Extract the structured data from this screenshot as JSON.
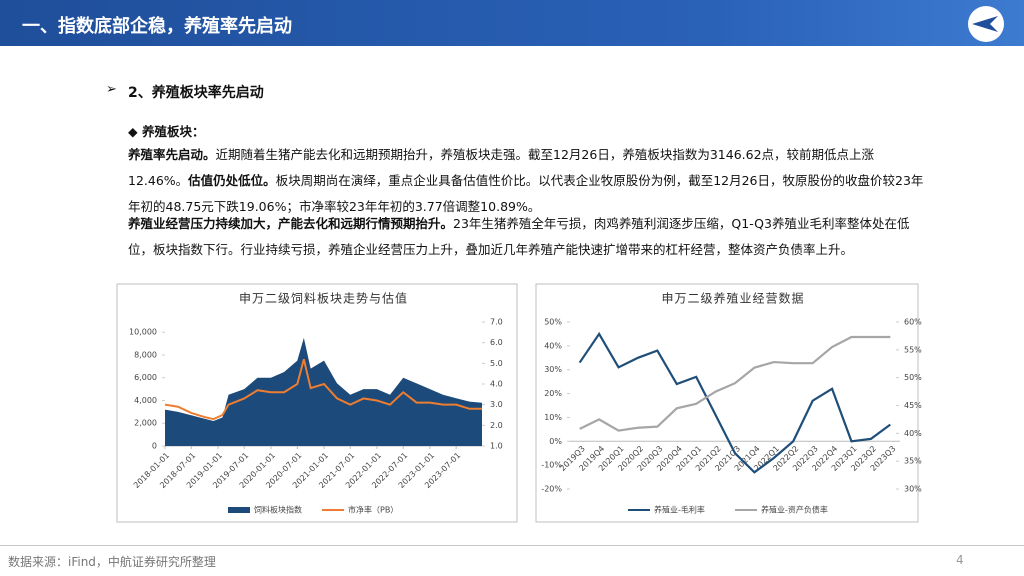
{
  "header": {
    "title": "一、指数底部企稳，养殖率先启动"
  },
  "section": {
    "title": "2、养殖板块率先启动",
    "subtitle": "养殖板块："
  },
  "paragraphs": [
    {
      "runs": [
        {
          "text": "养殖率先启动。",
          "bold": true
        },
        {
          "text": "近期随着生猪产能去化和远期预期抬升，养殖板块走强。截至12月26日，养殖板块指数为3146.62点，较前期低点上涨12.46%。",
          "bold": false
        },
        {
          "text": "估值仍处低位。",
          "bold": true
        },
        {
          "text": "板块周期尚在演绎，重点企业具备估值性价比。以代表企业牧原股份为例，截至12月26日，牧原股份的收盘价较23年年初的48.75元下跌19.06%；市净率较23年年初的3.77倍调整10.89%。",
          "bold": false
        }
      ]
    },
    {
      "runs": [
        {
          "text": "养殖业经营压力持续加大，产能去化和远期行情预期抬升。",
          "bold": true
        },
        {
          "text": "23年生猪养殖全年亏损，肉鸡养殖利润逐步压缩，Q1-Q3养殖业毛利率整体处在低位，板块指数下行。行业持续亏损，养殖企业经营压力上升，叠加近几年养殖产能快速扩增带来的杠杆经营，整体资产负债率上升。",
          "bold": false
        }
      ]
    }
  ],
  "chart_data": [
    {
      "type": "area-line",
      "title": "申万二级饲料板块走势与估值",
      "x": [
        "2018-01-01",
        "2018-04-01",
        "2018-07-01",
        "2018-10-01",
        "2018-12-01",
        "2019-02-01",
        "2019-03-15",
        "2019-07-01",
        "2019-10-01",
        "2020-01-01",
        "2020-04-01",
        "2020-07-01",
        "2020-08-15",
        "2020-10-01",
        "2021-01-01",
        "2021-04-01",
        "2021-07-01",
        "2021-10-01",
        "2022-01-01",
        "2022-04-01",
        "2022-07-01",
        "2022-10-01",
        "2023-01-01",
        "2023-04-01",
        "2023-07-01",
        "2023-10-01",
        "2023-12-26"
      ],
      "series": [
        {
          "name": "饲料板块指数",
          "color": "#1c4a7a",
          "values": [
            3200,
            3000,
            2700,
            2400,
            2200,
            2500,
            4500,
            5000,
            6000,
            6000,
            6500,
            7500,
            9500,
            6800,
            7500,
            5500,
            4500,
            5000,
            5000,
            4500,
            6000,
            5500,
            5000,
            4500,
            4200,
            3900,
            3800
          ]
        },
        {
          "name": "市净率（PB）",
          "color": "#ed7d31",
          "axis": "y2",
          "values": [
            3.0,
            2.9,
            2.6,
            2.4,
            2.3,
            2.5,
            3.0,
            3.3,
            3.7,
            3.6,
            3.6,
            4.0,
            5.2,
            3.8,
            4.0,
            3.3,
            3.0,
            3.3,
            3.2,
            3.0,
            3.6,
            3.1,
            3.1,
            3.0,
            3.0,
            2.8,
            2.8
          ]
        }
      ],
      "xlim": [
        "2018-01-01",
        "2023-12-26"
      ],
      "xticks": [
        "2018-01-01",
        "2018-07-01",
        "2019-01-01",
        "2019-07-01",
        "2020-01-01",
        "2020-07-01",
        "2021-01-01",
        "2021-07-01",
        "2022-01-01",
        "2022-07-01",
        "2023-01-01",
        "2023-07-01"
      ],
      "ylim": [
        0,
        10900
      ],
      "yticks": [
        0,
        {
          "value": 2000,
          "label": "2,000"
        },
        {
          "value": 4000,
          "label": "4,000"
        },
        {
          "value": 6000,
          "label": "6,000"
        },
        {
          "value": 8000,
          "label": "8,000"
        },
        {
          "value": 10000,
          "label": "10,000"
        }
      ],
      "y2lim": [
        1,
        7
      ],
      "y2ticks": [
        {
          "value": 1,
          "label": "1.0"
        },
        {
          "value": 2,
          "label": "2.0"
        },
        {
          "value": 3,
          "label": "3.0"
        },
        {
          "value": 4,
          "label": "4.0"
        },
        {
          "value": 5,
          "label": "5.0"
        },
        {
          "value": 6,
          "label": "6.0"
        },
        {
          "value": 7,
          "label": "7.0"
        }
      ]
    },
    {
      "type": "line",
      "title": "申万二级养殖业经营数据",
      "categories": [
        "2019Q3",
        "2019Q4",
        "2020Q1",
        "2020Q2",
        "2020Q3",
        "2020Q4",
        "2021Q1",
        "2021Q2",
        "2021Q3",
        "2021Q4",
        "2022Q1",
        "2022Q2",
        "2022Q3",
        "2022Q4",
        "2023Q1",
        "2023Q2",
        "2023Q3"
      ],
      "series": [
        {
          "name": "养殖业-毛利率",
          "color": "#1f4e79",
          "values": [
            33,
            45,
            31,
            35,
            38,
            24,
            27,
            11,
            -5,
            -13,
            -7,
            0,
            17,
            22,
            0,
            1,
            7
          ]
        },
        {
          "name": "养殖业-资产负债率",
          "color": "#a6a6a6",
          "axis": "y2",
          "values": [
            40.8,
            42.5,
            40.5,
            41,
            41.2,
            44.5,
            45.3,
            47.5,
            49,
            51.8,
            52.8,
            52.6,
            52.6,
            55.5,
            57.3,
            57.3,
            57.3
          ]
        }
      ],
      "ylim": [
        -20,
        50
      ],
      "yticks": [
        {
          "value": -20,
          "label": "-20%"
        },
        {
          "value": -10,
          "label": "-10%"
        },
        {
          "value": 0,
          "label": "0%"
        },
        {
          "value": 10,
          "label": "10%"
        },
        {
          "value": 20,
          "label": "20%"
        },
        {
          "value": 30,
          "label": "30%"
        },
        {
          "value": 40,
          "label": "40%"
        },
        {
          "value": 50,
          "label": "50%"
        }
      ],
      "y2lim": [
        30,
        60
      ],
      "y2ticks": [
        {
          "value": 30,
          "label": "30%"
        },
        {
          "value": 35,
          "label": "35%"
        },
        {
          "value": 40,
          "label": "40%"
        },
        {
          "value": 45,
          "label": "45%"
        },
        {
          "value": 50,
          "label": "50%"
        },
        {
          "value": 55,
          "label": "55%"
        },
        {
          "value": 60,
          "label": "60%"
        }
      ]
    }
  ],
  "footer": {
    "source": "数据来源：iFind，中航证券研究所整理",
    "page": "4"
  }
}
